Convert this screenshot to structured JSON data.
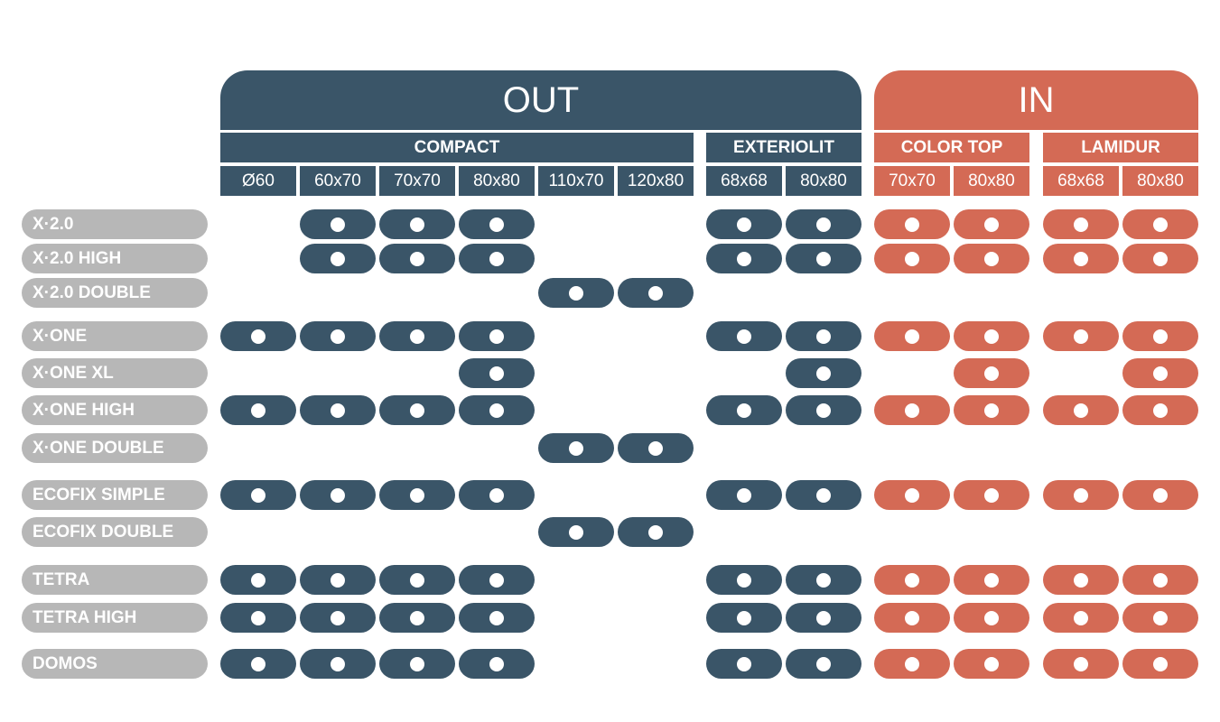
{
  "colors": {
    "out": "#3a5568",
    "in": "#d46a55",
    "label": "#b7b7b7",
    "dot": "#ffffff"
  },
  "sections": [
    {
      "label": "OUT",
      "color": "out",
      "groups": [
        {
          "label": "COMPACT",
          "sizes": [
            "Ø60",
            "60x70",
            "70x70",
            "80x80",
            "110x70",
            "120x80"
          ]
        },
        {
          "label": "EXTERIOLIT",
          "sizes": [
            "68x68",
            "80x80"
          ]
        }
      ]
    },
    {
      "label": "IN",
      "color": "in",
      "groups": [
        {
          "label": "COLOR TOP",
          "sizes": [
            "70x70",
            "80x80"
          ]
        },
        {
          "label": "LAMIDUR",
          "sizes": [
            "68x68",
            "80x80"
          ]
        }
      ]
    }
  ],
  "rows": [
    {
      "label": "X·2.0",
      "marks": [
        0,
        1,
        1,
        1,
        0,
        0,
        1,
        1,
        1,
        1,
        1,
        1
      ]
    },
    {
      "label": "X·2.0 HIGH",
      "marks": [
        0,
        1,
        1,
        1,
        0,
        0,
        1,
        1,
        1,
        1,
        1,
        1
      ]
    },
    {
      "label": "X·2.0 DOUBLE",
      "marks": [
        0,
        0,
        0,
        0,
        1,
        1,
        0,
        0,
        0,
        0,
        0,
        0
      ]
    },
    {
      "label": "X·ONE",
      "marks": [
        1,
        1,
        1,
        1,
        0,
        0,
        1,
        1,
        1,
        1,
        1,
        1
      ]
    },
    {
      "label": "X·ONE XL",
      "marks": [
        0,
        0,
        0,
        1,
        0,
        0,
        0,
        1,
        0,
        1,
        0,
        1
      ]
    },
    {
      "label": "X·ONE HIGH",
      "marks": [
        1,
        1,
        1,
        1,
        0,
        0,
        1,
        1,
        1,
        1,
        1,
        1
      ]
    },
    {
      "label": "X·ONE DOUBLE",
      "marks": [
        0,
        0,
        0,
        0,
        1,
        1,
        0,
        0,
        0,
        0,
        0,
        0
      ]
    },
    {
      "label": "ECOFIX SIMPLE",
      "marks": [
        1,
        1,
        1,
        1,
        0,
        0,
        1,
        1,
        1,
        1,
        1,
        1
      ]
    },
    {
      "label": "ECOFIX DOUBLE",
      "marks": [
        0,
        0,
        0,
        0,
        1,
        1,
        0,
        0,
        0,
        0,
        0,
        0
      ]
    },
    {
      "label": "TETRA",
      "marks": [
        1,
        1,
        1,
        1,
        0,
        0,
        1,
        1,
        1,
        1,
        1,
        1
      ]
    },
    {
      "label": "TETRA HIGH",
      "marks": [
        1,
        1,
        1,
        1,
        0,
        0,
        1,
        1,
        1,
        1,
        1,
        1
      ]
    },
    {
      "label": "DOMOS",
      "marks": [
        1,
        1,
        1,
        1,
        0,
        0,
        1,
        1,
        1,
        1,
        1,
        1
      ]
    }
  ]
}
